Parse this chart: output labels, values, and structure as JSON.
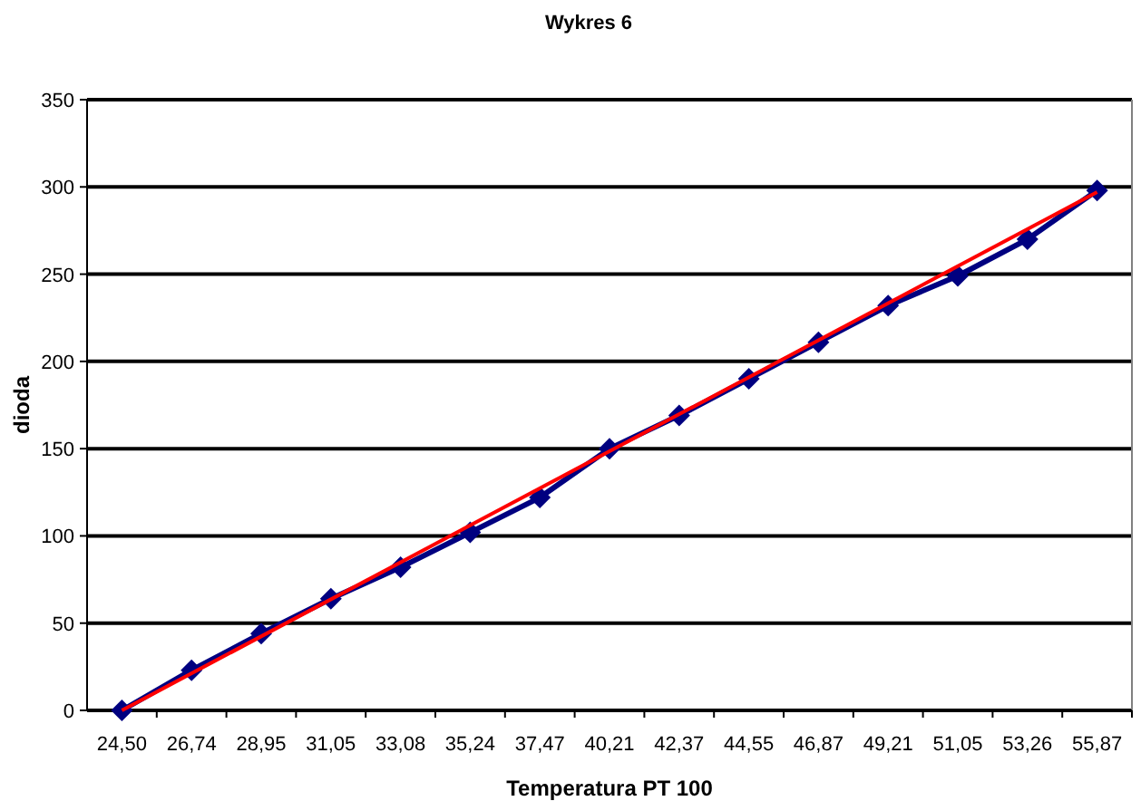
{
  "chart_data": {
    "type": "line",
    "title": "Wykres 6",
    "xlabel": "Temperatura PT 100",
    "ylabel": "dioda",
    "categories": [
      "24,50",
      "26,74",
      "28,95",
      "31,05",
      "33,08",
      "35,24",
      "37,47",
      "40,21",
      "42,37",
      "44,55",
      "46,87",
      "49,21",
      "51,05",
      "53,26",
      "55,87"
    ],
    "series": [
      {
        "color": "#000080",
        "marker": "diamond",
        "values": [
          0,
          23,
          44,
          64,
          82,
          102,
          122,
          150,
          169,
          190,
          211,
          232,
          249,
          270,
          298
        ]
      },
      {
        "type": "line",
        "color": "#ff0000",
        "marker": "none",
        "x": [
          "24,50",
          "55,87"
        ],
        "values": [
          0,
          297
        ]
      }
    ],
    "ylim": [
      0,
      350
    ],
    "yticks": [
      0,
      50,
      100,
      150,
      200,
      250,
      300,
      350
    ],
    "grid": "y"
  }
}
